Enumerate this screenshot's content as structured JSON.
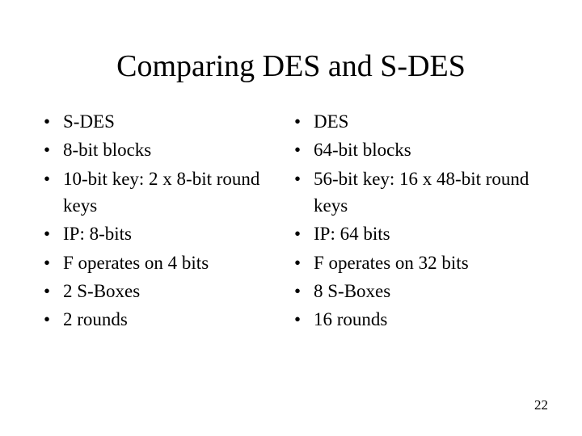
{
  "title": "Comparing DES and S-DES",
  "left": {
    "items": [
      "S-DES",
      "8-bit blocks",
      "10-bit key: 2 x 8-bit round keys",
      "IP: 8-bits",
      "F operates on 4 bits",
      "2 S-Boxes",
      "2 rounds"
    ]
  },
  "right": {
    "items": [
      "DES",
      "64-bit blocks",
      "56-bit key: 16 x 48-bit round keys",
      "IP: 64 bits",
      "F operates on 32 bits",
      "8 S-Boxes",
      "16 rounds"
    ]
  },
  "page_number": "22",
  "colors": {
    "background": "#ffffff",
    "text": "#000000"
  },
  "typography": {
    "font_family": "Times New Roman",
    "title_fontsize": 38,
    "body_fontsize": 23,
    "pagenum_fontsize": 17
  }
}
